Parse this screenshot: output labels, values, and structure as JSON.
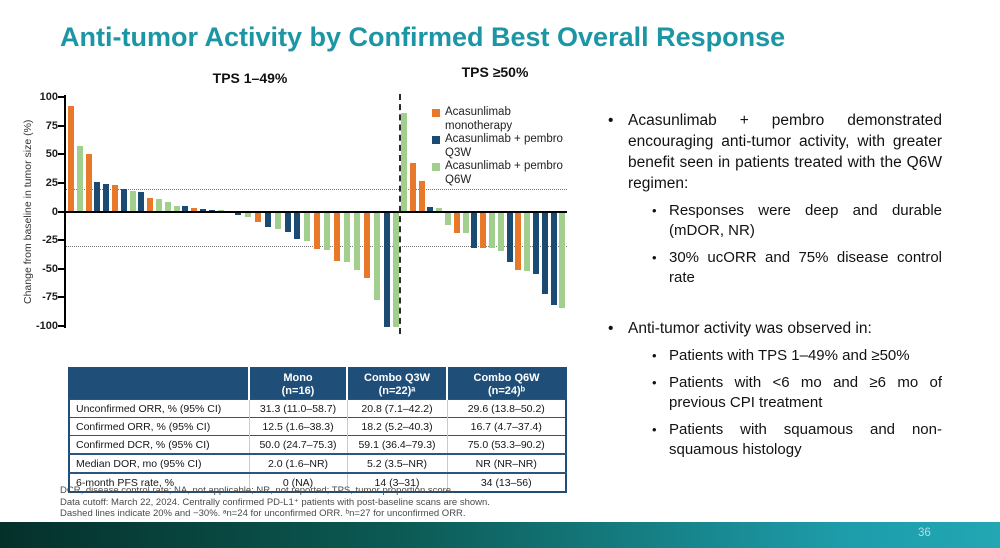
{
  "slide": {
    "title": "Anti-tumor Activity by Confirmed Best Overall Response",
    "page_number": "36"
  },
  "colors": {
    "title_teal": "#1C96A5",
    "table_header_navy": "#1F4E79",
    "axis_black": "#000000",
    "footer_gradient": [
      "#05302A",
      "#0C5A54",
      "#1E9DAB",
      "#22A7B3"
    ]
  },
  "chart_data": {
    "type": "bar",
    "kind": "waterfall",
    "ylabel": "Change from baseline in tumor size (%)",
    "ylim": [
      -100,
      100
    ],
    "yticks": [
      100,
      75,
      50,
      25,
      0,
      -25,
      -50,
      -75,
      -100
    ],
    "threshold_lines": [
      20,
      -30
    ],
    "grid": false,
    "legend_position": "top-right",
    "section_labels": [
      "TPS 1–49%",
      "TPS ≥50%"
    ],
    "legend": [
      {
        "key": "mono",
        "label": "Acasunlimab monotherapy",
        "color": "#E8792B"
      },
      {
        "key": "q3w",
        "label": "Acasunlimab + pembro Q3W",
        "color": "#1B4B72"
      },
      {
        "key": "q6w",
        "label": "Acasunlimab + pembro Q6W",
        "color": "#A3CF8E"
      }
    ],
    "sections": [
      {
        "label": "TPS 1–49%",
        "bars": [
          {
            "g": "mono",
            "v": 92
          },
          {
            "g": "q6w",
            "v": 57
          },
          {
            "g": "mono",
            "v": 50
          },
          {
            "g": "q3w",
            "v": 26
          },
          {
            "g": "q3w",
            "v": 24
          },
          {
            "g": "mono",
            "v": 23
          },
          {
            "g": "q3w",
            "v": 20
          },
          {
            "g": "q6w",
            "v": 18
          },
          {
            "g": "q3w",
            "v": 17
          },
          {
            "g": "mono",
            "v": 12
          },
          {
            "g": "q6w",
            "v": 11
          },
          {
            "g": "q6w",
            "v": 8
          },
          {
            "g": "q6w",
            "v": 5
          },
          {
            "g": "q3w",
            "v": 5
          },
          {
            "g": "mono",
            "v": 3
          },
          {
            "g": "q3w",
            "v": 2
          },
          {
            "g": "q3w",
            "v": 1.5
          },
          {
            "g": "q6w",
            "v": 1
          },
          {
            "g": "q3w",
            "v": -2
          },
          {
            "g": "q6w",
            "v": -4
          },
          {
            "g": "mono",
            "v": -8
          },
          {
            "g": "q3w",
            "v": -13
          },
          {
            "g": "q6w",
            "v": -14
          },
          {
            "g": "q3w",
            "v": -17
          },
          {
            "g": "q3w",
            "v": -23
          },
          {
            "g": "q6w",
            "v": -25
          },
          {
            "g": "mono",
            "v": -32
          },
          {
            "g": "q6w",
            "v": -33
          },
          {
            "g": "mono",
            "v": -42
          },
          {
            "g": "q6w",
            "v": -43
          },
          {
            "g": "q6w",
            "v": -50
          },
          {
            "g": "mono",
            "v": -57
          },
          {
            "g": "q6w",
            "v": -76
          },
          {
            "g": "q3w",
            "v": -100
          },
          {
            "g": "q6w",
            "v": -100
          }
        ]
      },
      {
        "label": "TPS ≥50%",
        "bars": [
          {
            "g": "q6w",
            "v": 86
          },
          {
            "g": "mono",
            "v": 42
          },
          {
            "g": "mono",
            "v": 27
          },
          {
            "g": "q3w",
            "v": 4
          },
          {
            "g": "q6w",
            "v": 3
          },
          {
            "g": "q6w",
            "v": -11
          },
          {
            "g": "mono",
            "v": -18
          },
          {
            "g": "q6w",
            "v": -18
          },
          {
            "g": "q3w",
            "v": -31
          },
          {
            "g": "mono",
            "v": -31
          },
          {
            "g": "q6w",
            "v": -31
          },
          {
            "g": "q6w",
            "v": -34
          },
          {
            "g": "q3w",
            "v": -43
          },
          {
            "g": "mono",
            "v": -50
          },
          {
            "g": "q6w",
            "v": -51
          },
          {
            "g": "q3w",
            "v": -54
          },
          {
            "g": "q3w",
            "v": -71
          },
          {
            "g": "q3w",
            "v": -81
          },
          {
            "g": "q6w",
            "v": -83
          }
        ]
      }
    ]
  },
  "table": {
    "header": [
      {
        "line1": "",
        "line2": ""
      },
      {
        "line1": "Mono",
        "line2": "(n=16)"
      },
      {
        "line1": "Combo Q3W",
        "line2": "(n=22)ᵃ"
      },
      {
        "line1": "Combo Q6W",
        "line2": "(n=24)ᵇ"
      }
    ],
    "rows": [
      {
        "label": "Unconfirmed ORR, %  (95% CI)",
        "values": [
          "31.3 (11.0–58.7)",
          "20.8 (7.1–42.2)",
          "29.6 (13.8–50.2)"
        ]
      },
      {
        "label": "Confirmed ORR, % (95% CI)",
        "values": [
          "12.5 (1.6–38.3)",
          "18.2 (5.2–40.3)",
          "16.7 (4.7–37.4)"
        ]
      },
      {
        "label": "Confirmed DCR, % (95% CI)",
        "values": [
          "50.0 (24.7–75.3)",
          "59.1 (36.4–79.3)",
          "75.0 (53.3–90.2)"
        ]
      },
      {
        "label": "Median DOR, mo (95% CI)",
        "values": [
          "2.0 (1.6–NR)",
          "5.2 (3.5–NR)",
          "NR (NR–NR)"
        ]
      },
      {
        "label": "6-month PFS rate, %",
        "values": [
          "0 (NA)",
          "14 (3–31)",
          "34 (13–56)"
        ]
      }
    ]
  },
  "bullets": [
    {
      "text": "Acasunlimab + pembro demonstrated encouraging anti-tumor activity, with greater benefit seen in patients treated with the Q6W regimen:",
      "sub": [
        "Responses were deep and durable (mDOR, NR)",
        "30% ucORR and 75% disease control rate"
      ]
    },
    {
      "text": "Anti-tumor activity was observed in:",
      "sub": [
        "Patients with TPS 1–49% and ≥50%",
        "Patients with <6 mo and ≥6 mo of previous CPI treatment",
        "Patients with squamous and non-squamous histology"
      ]
    }
  ],
  "footnotes": [
    "DCR, disease control rate; NA, not applicable; NR, not reported; TPS, tumor proportion score.",
    "Data cutoff: March 22, 2024. Centrally confirmed PD-L1⁺ patients with post-baseline scans are shown.",
    "Dashed lines indicate 20% and −30%. ᵃn=24 for unconfirmed ORR. ᵇn=27 for unconfirmed ORR."
  ]
}
